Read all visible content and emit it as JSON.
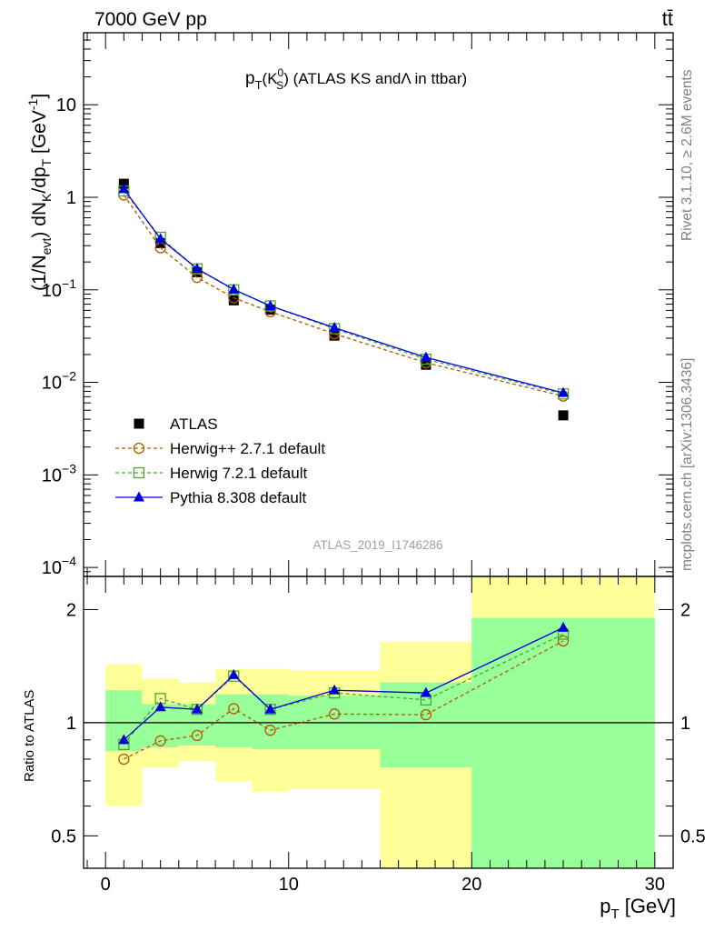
{
  "header": {
    "left": "7000 GeV pp",
    "right": "tt̄"
  },
  "side_texts": {
    "rivet": "Rivet 3.1.10, ≥ 2.6M events",
    "mcplots": "mcplots.cern.ch [arXiv:1306.3436]"
  },
  "watermark": "ATLAS_2019_I1746286",
  "chart_data": [
    {
      "type": "scatter",
      "title_parts": {
        "p": "p",
        "T": "T",
        "K": "(K",
        "zero": "0",
        "S": "S",
        "close": ")",
        "rest": " (ATLAS KS andΛ in ttbar)"
      },
      "ylabel_parts": {
        "a": "(1/N",
        "evt": "evt",
        "b": ") dN",
        "K": "K",
        "c": "/dp",
        "T": "T",
        "d": " [GeV",
        "exp": "-1",
        "e": "]"
      },
      "yscale": "log",
      "ylim": [
        8e-05,
        60
      ],
      "xlim": [
        -1.2,
        31
      ],
      "y_ticks": [
        {
          "v": 10,
          "label": "10"
        },
        {
          "v": 1,
          "label": "1"
        },
        {
          "v": 0.1,
          "base": "10",
          "exp": "−1"
        },
        {
          "v": 0.01,
          "base": "10",
          "exp": "−2"
        },
        {
          "v": 0.001,
          "base": "10",
          "exp": "−3"
        },
        {
          "v": 0.0001,
          "base": "10",
          "exp": "−4"
        }
      ],
      "x": [
        1,
        3,
        5,
        7,
        9,
        12.5,
        17.5,
        25
      ],
      "series": [
        {
          "name": "ATLAS",
          "color": "#000000",
          "marker": "filled-square",
          "line": "none",
          "values": [
            1.4,
            0.32,
            0.155,
            0.077,
            0.061,
            0.032,
            0.0155,
            0.0044
          ]
        },
        {
          "name": "Herwig++ 2.7.1 default",
          "color": "#b35900",
          "marker": "open-circle",
          "line": "dashed",
          "values": [
            1.06,
            0.285,
            0.136,
            0.082,
            0.058,
            0.0335,
            0.0163,
            0.0071
          ]
        },
        {
          "name": "Herwig 7.2.1 default",
          "color": "#4aa832",
          "marker": "open-square",
          "line": "dashed",
          "values": [
            1.17,
            0.37,
            0.168,
            0.1,
            0.067,
            0.038,
            0.0178,
            0.0075
          ]
        },
        {
          "name": "Pythia 8.308 default",
          "color": "#0000dd",
          "marker": "filled-triangle",
          "line": "solid",
          "values": [
            1.23,
            0.355,
            0.169,
            0.101,
            0.067,
            0.039,
            0.0186,
            0.0077
          ]
        }
      ]
    },
    {
      "type": "line",
      "ylabel": "Ratio to ATLAS",
      "yscale": "log",
      "ylim": [
        0.41,
        2.45
      ],
      "y_ticks": [
        {
          "v": 2,
          "label": "2"
        },
        {
          "v": 1,
          "label": "1"
        },
        {
          "v": 0.5,
          "label": "0.5"
        }
      ],
      "x_ticks": [
        {
          "v": 0,
          "label": "0"
        },
        {
          "v": 10,
          "label": "10"
        },
        {
          "v": 20,
          "label": "20"
        },
        {
          "v": 30,
          "label": "30"
        }
      ],
      "xlabel_parts": {
        "p": "p",
        "T": "T",
        "unit": " [GeV]"
      },
      "bands": {
        "bins": [
          [
            0,
            2
          ],
          [
            2,
            4
          ],
          [
            4,
            6
          ],
          [
            6,
            8
          ],
          [
            8,
            10
          ],
          [
            10,
            15
          ],
          [
            15,
            20
          ],
          [
            20,
            30
          ]
        ],
        "yellow": [
          [
            0.6,
            1.43
          ],
          [
            0.76,
            1.31
          ],
          [
            0.79,
            1.28
          ],
          [
            0.7,
            1.39
          ],
          [
            0.655,
            1.39
          ],
          [
            0.665,
            1.38
          ],
          [
            0.39,
            1.64
          ],
          [
            0.39,
            2.45
          ]
        ],
        "green": [
          [
            0.84,
            1.22
          ],
          [
            0.86,
            1.12
          ],
          [
            0.87,
            1.12
          ],
          [
            0.86,
            1.19
          ],
          [
            0.85,
            1.19
          ],
          [
            0.85,
            1.18
          ],
          [
            0.76,
            1.28
          ],
          [
            0.39,
            1.9
          ]
        ]
      },
      "x": [
        1,
        3,
        5,
        7,
        9,
        12.5,
        17.5,
        25
      ],
      "series": [
        {
          "name": "Herwig++ 2.7.1 default",
          "color": "#b35900",
          "line": "dashed",
          "marker": "open-circle",
          "values": [
            0.8,
            0.895,
            0.925,
            1.09,
            0.955,
            1.055,
            1.05,
            1.65
          ]
        },
        {
          "name": "Herwig 7.2.1 default",
          "color": "#4aa832",
          "line": "dashed",
          "marker": "open-square",
          "values": [
            0.875,
            1.16,
            1.085,
            1.33,
            1.085,
            1.2,
            1.15,
            1.72
          ]
        },
        {
          "name": "Pythia 8.308 default",
          "color": "#0000dd",
          "line": "solid",
          "marker": "filled-triangle",
          "values": [
            0.9,
            1.1,
            1.085,
            1.34,
            1.085,
            1.22,
            1.2,
            1.79
          ]
        }
      ]
    }
  ]
}
